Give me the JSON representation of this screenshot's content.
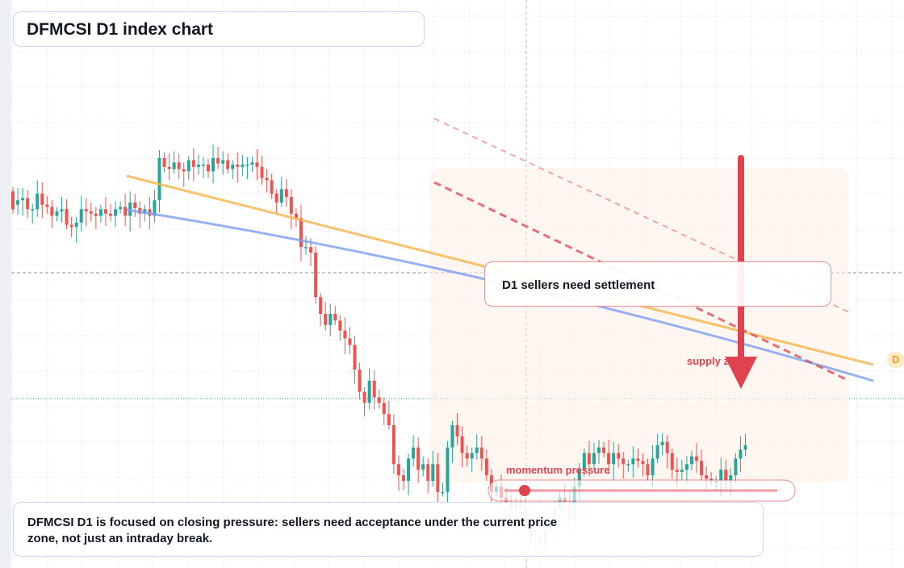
{
  "title": "DFMCSI D1 index chart",
  "callouts": {
    "sellers": "D1 sellers need settlement",
    "supply": "supply zone",
    "momentum": "momentum pressure",
    "edge_badge": "D"
  },
  "note": "DFMCSI D1 is focused on closing pressure: sellers need acceptance under the current price zone, not just an intraday break.",
  "colors": {
    "bull": "#26a69a",
    "bear": "#ef5350",
    "ma_fast": "#f6b54a",
    "ma_slow": "#7d9ff0",
    "accent": "#e0434f",
    "grid": "#e6e9ef"
  },
  "chart_data": {
    "type": "candlestick",
    "symbol": "DFMCSI",
    "timeframe": "D1",
    "grid": true,
    "y_range": [
      0,
      100
    ],
    "open": [
      60,
      48,
      52,
      54,
      44,
      44,
      58,
      48,
      46,
      38,
      42,
      44,
      30,
      28,
      32,
      44,
      42,
      40,
      38,
      44,
      40,
      38,
      44,
      46,
      38,
      50,
      45,
      40,
      44,
      38,
      52,
      90,
      82,
      80,
      86,
      80,
      78,
      88,
      82,
      84,
      84,
      78,
      90,
      85,
      88,
      80,
      84,
      82,
      84,
      84,
      86,
      82,
      72,
      70,
      58,
      50,
      62,
      55,
      40,
      36,
      10,
      10,
      5,
      -35,
      -50,
      -60,
      -50,
      -56,
      -65,
      -72,
      -78,
      -100,
      -120,
      -130,
      -110,
      -125,
      -130,
      -140,
      -150,
      -185,
      -195,
      -200,
      -180,
      -170,
      -190,
      -185,
      -200,
      -185,
      -210,
      -210,
      -170,
      -150,
      -160,
      -175,
      -180,
      -175,
      -170,
      -180,
      -195,
      -210,
      -205,
      -215,
      -220,
      -225,
      -220,
      -225,
      -240,
      -250,
      -250,
      -255,
      -245,
      -240,
      -225,
      -215,
      -220,
      -235,
      -205,
      -190,
      -175,
      -185,
      -175,
      -170,
      -175,
      -185,
      -175,
      -180,
      -185,
      -185,
      -180,
      -182,
      -185,
      -195,
      -180,
      -168,
      -165,
      -175,
      -190,
      -192,
      -190,
      -185,
      -178,
      -182,
      -195,
      -198,
      -200,
      -200,
      -190,
      -200,
      -195,
      -180,
      -172
    ],
    "close": [
      44,
      52,
      54,
      44,
      44,
      58,
      48,
      46,
      38,
      42,
      44,
      30,
      28,
      32,
      44,
      42,
      40,
      38,
      44,
      40,
      38,
      44,
      46,
      38,
      50,
      45,
      40,
      44,
      38,
      52,
      90,
      82,
      80,
      86,
      80,
      78,
      88,
      82,
      84,
      84,
      78,
      90,
      85,
      88,
      80,
      84,
      82,
      84,
      84,
      86,
      82,
      72,
      70,
      58,
      50,
      62,
      55,
      40,
      36,
      10,
      10,
      5,
      -35,
      -50,
      -60,
      -50,
      -56,
      -65,
      -72,
      -78,
      -100,
      -120,
      -130,
      -110,
      -125,
      -130,
      -140,
      -150,
      -185,
      -195,
      -200,
      -180,
      -170,
      -190,
      -185,
      -200,
      -185,
      -210,
      -210,
      -170,
      -150,
      -160,
      -175,
      -180,
      -175,
      -170,
      -180,
      -195,
      -210,
      -205,
      -215,
      -220,
      -225,
      -220,
      -225,
      -240,
      -250,
      -250,
      -255,
      -245,
      -240,
      -225,
      -215,
      -220,
      -235,
      -205,
      -190,
      -175,
      -185,
      -175,
      -170,
      -175,
      -185,
      -175,
      -180,
      -185,
      -185,
      -180,
      -182,
      -185,
      -195,
      -180,
      -168,
      -165,
      -175,
      -190,
      -192,
      -190,
      -185,
      -178,
      -182,
      -195,
      -198,
      -200,
      -200,
      -190,
      -200,
      -195,
      -180,
      -172,
      -168
    ]
  }
}
